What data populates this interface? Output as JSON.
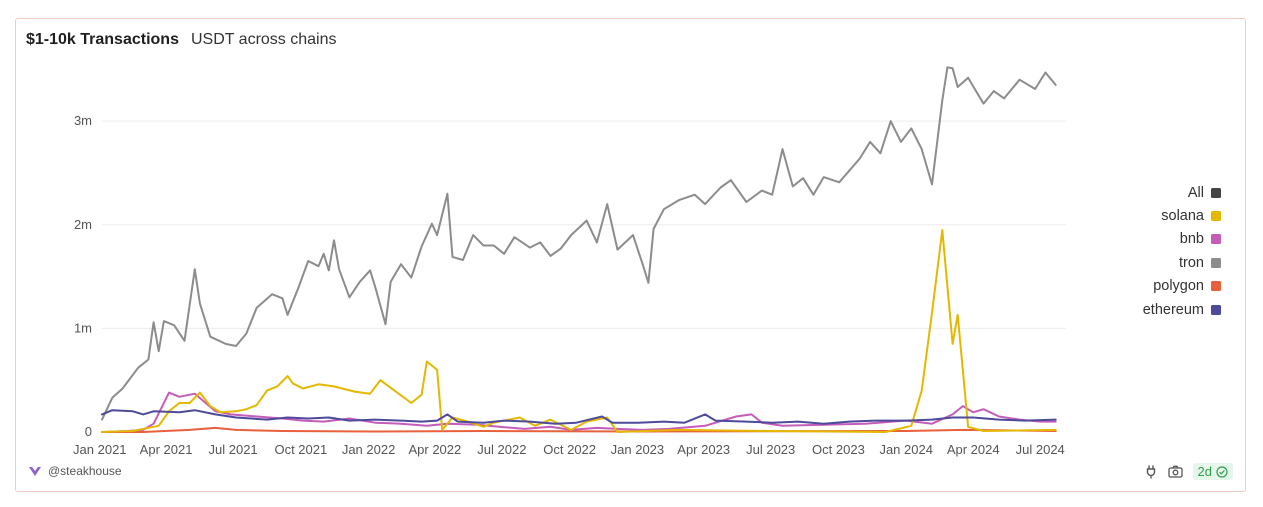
{
  "header": {
    "title": "$1-10k Transactions",
    "subtitle": "USDT across chains"
  },
  "footer": {
    "author": "@steakhouse",
    "freshness": "2d",
    "icons": [
      "steakhouse-logo-icon",
      "plug-icon",
      "camera-icon",
      "check-circle-icon"
    ]
  },
  "chart_data": {
    "type": "line",
    "title": "$1-10k Transactions",
    "subtitle": "USDT across chains",
    "xlabel": "",
    "ylabel": "",
    "x_range": [
      "2021-01-04",
      "2024-08-05"
    ],
    "ylim": [
      0,
      3600000
    ],
    "y_ticks": [
      {
        "value": 0,
        "label": "0"
      },
      {
        "value": 1000000,
        "label": "1m"
      },
      {
        "value": 2000000,
        "label": "2m"
      },
      {
        "value": 3000000,
        "label": "3m"
      }
    ],
    "x_ticks": [
      {
        "date": "2021-01-01",
        "label": "Jan 2021"
      },
      {
        "date": "2021-04-01",
        "label": "Apr 2021"
      },
      {
        "date": "2021-07-01",
        "label": "Jul 2021"
      },
      {
        "date": "2021-10-01",
        "label": "Oct 2021"
      },
      {
        "date": "2022-01-01",
        "label": "Jan 2022"
      },
      {
        "date": "2022-04-01",
        "label": "Apr 2022"
      },
      {
        "date": "2022-07-01",
        "label": "Jul 2022"
      },
      {
        "date": "2022-10-01",
        "label": "Oct 2022"
      },
      {
        "date": "2023-01-01",
        "label": "Jan 2023"
      },
      {
        "date": "2023-04-01",
        "label": "Apr 2023"
      },
      {
        "date": "2023-07-01",
        "label": "Jul 2023"
      },
      {
        "date": "2023-10-01",
        "label": "Oct 2023"
      },
      {
        "date": "2024-01-01",
        "label": "Jan 2024"
      },
      {
        "date": "2024-04-01",
        "label": "Apr 2024"
      },
      {
        "date": "2024-07-01",
        "label": "Jul 2024"
      }
    ],
    "grid": "horizontal",
    "legend_position": "right",
    "series": [
      {
        "name": "tron",
        "color": "#8c8c8c",
        "points": [
          [
            "2021-01-04",
            120000
          ],
          [
            "2021-01-18",
            330000
          ],
          [
            "2021-02-01",
            420000
          ],
          [
            "2021-02-22",
            620000
          ],
          [
            "2021-03-08",
            700000
          ],
          [
            "2021-03-15",
            1060000
          ],
          [
            "2021-03-22",
            780000
          ],
          [
            "2021-03-29",
            1070000
          ],
          [
            "2021-04-12",
            1030000
          ],
          [
            "2021-04-26",
            880000
          ],
          [
            "2021-05-10",
            1570000
          ],
          [
            "2021-05-17",
            1240000
          ],
          [
            "2021-05-31",
            920000
          ],
          [
            "2021-06-21",
            850000
          ],
          [
            "2021-07-05",
            830000
          ],
          [
            "2021-07-19",
            950000
          ],
          [
            "2021-08-02",
            1200000
          ],
          [
            "2021-08-23",
            1330000
          ],
          [
            "2021-09-06",
            1290000
          ],
          [
            "2021-09-13",
            1130000
          ],
          [
            "2021-09-27",
            1380000
          ],
          [
            "2021-10-11",
            1650000
          ],
          [
            "2021-10-25",
            1600000
          ],
          [
            "2021-11-01",
            1720000
          ],
          [
            "2021-11-08",
            1560000
          ],
          [
            "2021-11-15",
            1850000
          ],
          [
            "2021-11-22",
            1570000
          ],
          [
            "2021-12-06",
            1300000
          ],
          [
            "2021-12-20",
            1450000
          ],
          [
            "2022-01-03",
            1560000
          ],
          [
            "2022-01-10",
            1400000
          ],
          [
            "2022-01-24",
            1040000
          ],
          [
            "2022-01-31",
            1450000
          ],
          [
            "2022-02-14",
            1620000
          ],
          [
            "2022-02-28",
            1490000
          ],
          [
            "2022-03-14",
            1790000
          ],
          [
            "2022-03-28",
            2010000
          ],
          [
            "2022-04-04",
            1900000
          ],
          [
            "2022-04-18",
            2300000
          ],
          [
            "2022-04-25",
            1690000
          ],
          [
            "2022-05-09",
            1660000
          ],
          [
            "2022-05-23",
            1900000
          ],
          [
            "2022-06-06",
            1800000
          ],
          [
            "2022-06-20",
            1800000
          ],
          [
            "2022-07-04",
            1720000
          ],
          [
            "2022-07-18",
            1880000
          ],
          [
            "2022-08-08",
            1780000
          ],
          [
            "2022-08-22",
            1830000
          ],
          [
            "2022-09-05",
            1700000
          ],
          [
            "2022-09-19",
            1770000
          ],
          [
            "2022-10-03",
            1900000
          ],
          [
            "2022-10-24",
            2040000
          ],
          [
            "2022-11-07",
            1830000
          ],
          [
            "2022-11-21",
            2200000
          ],
          [
            "2022-12-05",
            1760000
          ],
          [
            "2022-12-26",
            1900000
          ],
          [
            "2023-01-09",
            1600000
          ],
          [
            "2023-01-16",
            1440000
          ],
          [
            "2023-01-23",
            1960000
          ],
          [
            "2023-02-06",
            2150000
          ],
          [
            "2023-02-27",
            2240000
          ],
          [
            "2023-03-20",
            2290000
          ],
          [
            "2023-04-03",
            2200000
          ],
          [
            "2023-04-24",
            2360000
          ],
          [
            "2023-05-08",
            2430000
          ],
          [
            "2023-05-29",
            2220000
          ],
          [
            "2023-06-19",
            2330000
          ],
          [
            "2023-07-03",
            2290000
          ],
          [
            "2023-07-17",
            2730000
          ],
          [
            "2023-07-31",
            2370000
          ],
          [
            "2023-08-14",
            2450000
          ],
          [
            "2023-08-28",
            2290000
          ],
          [
            "2023-09-11",
            2460000
          ],
          [
            "2023-10-02",
            2410000
          ],
          [
            "2023-10-30",
            2640000
          ],
          [
            "2023-11-13",
            2800000
          ],
          [
            "2023-11-27",
            2690000
          ],
          [
            "2023-12-11",
            3000000
          ],
          [
            "2023-12-25",
            2800000
          ],
          [
            "2024-01-08",
            2930000
          ],
          [
            "2024-01-22",
            2730000
          ],
          [
            "2024-02-05",
            2390000
          ],
          [
            "2024-02-19",
            3200000
          ],
          [
            "2024-02-26",
            3520000
          ],
          [
            "2024-03-04",
            3510000
          ],
          [
            "2024-03-11",
            3330000
          ],
          [
            "2024-03-25",
            3420000
          ],
          [
            "2024-04-15",
            3170000
          ],
          [
            "2024-04-29",
            3290000
          ],
          [
            "2024-05-13",
            3220000
          ],
          [
            "2024-06-03",
            3400000
          ],
          [
            "2024-06-24",
            3310000
          ],
          [
            "2024-07-08",
            3470000
          ],
          [
            "2024-07-22",
            3350000
          ]
        ]
      },
      {
        "name": "solana",
        "color": "#e5b800",
        "points": [
          [
            "2021-01-04",
            0
          ],
          [
            "2021-02-15",
            10000
          ],
          [
            "2021-03-22",
            60000
          ],
          [
            "2021-04-05",
            200000
          ],
          [
            "2021-04-19",
            280000
          ],
          [
            "2021-05-03",
            280000
          ],
          [
            "2021-05-17",
            380000
          ],
          [
            "2021-05-31",
            250000
          ],
          [
            "2021-06-14",
            190000
          ],
          [
            "2021-07-05",
            200000
          ],
          [
            "2021-07-19",
            220000
          ],
          [
            "2021-08-02",
            260000
          ],
          [
            "2021-08-16",
            400000
          ],
          [
            "2021-08-30",
            440000
          ],
          [
            "2021-09-13",
            540000
          ],
          [
            "2021-09-20",
            470000
          ],
          [
            "2021-10-04",
            420000
          ],
          [
            "2021-10-25",
            460000
          ],
          [
            "2021-11-15",
            440000
          ],
          [
            "2021-12-13",
            390000
          ],
          [
            "2022-01-03",
            370000
          ],
          [
            "2022-01-17",
            500000
          ],
          [
            "2022-02-07",
            390000
          ],
          [
            "2022-02-28",
            280000
          ],
          [
            "2022-03-14",
            360000
          ],
          [
            "2022-03-21",
            680000
          ],
          [
            "2022-04-04",
            600000
          ],
          [
            "2022-04-11",
            20000
          ],
          [
            "2022-04-25",
            140000
          ],
          [
            "2022-05-16",
            100000
          ],
          [
            "2022-06-06",
            50000
          ],
          [
            "2022-06-20",
            90000
          ],
          [
            "2022-07-25",
            140000
          ],
          [
            "2022-08-15",
            60000
          ],
          [
            "2022-09-05",
            120000
          ],
          [
            "2022-10-03",
            20000
          ],
          [
            "2022-10-24",
            100000
          ],
          [
            "2022-11-21",
            140000
          ],
          [
            "2022-12-05",
            0
          ],
          [
            "2023-02-27",
            20000
          ],
          [
            "2023-06-26",
            10000
          ],
          [
            "2023-12-04",
            0
          ],
          [
            "2024-01-08",
            60000
          ],
          [
            "2024-01-22",
            400000
          ],
          [
            "2024-02-05",
            1150000
          ],
          [
            "2024-02-19",
            1950000
          ],
          [
            "2024-03-04",
            850000
          ],
          [
            "2024-03-11",
            1130000
          ],
          [
            "2024-03-25",
            50000
          ],
          [
            "2024-04-15",
            10000
          ],
          [
            "2024-07-22",
            20000
          ]
        ]
      },
      {
        "name": "bnb",
        "color": "#c65cb9",
        "points": [
          [
            "2021-01-04",
            0
          ],
          [
            "2021-02-08",
            10000
          ],
          [
            "2021-03-01",
            20000
          ],
          [
            "2021-03-15",
            80000
          ],
          [
            "2021-04-05",
            380000
          ],
          [
            "2021-04-19",
            340000
          ],
          [
            "2021-05-10",
            370000
          ],
          [
            "2021-06-07",
            200000
          ],
          [
            "2021-06-28",
            170000
          ],
          [
            "2021-08-02",
            150000
          ],
          [
            "2021-09-06",
            130000
          ],
          [
            "2021-10-04",
            110000
          ],
          [
            "2021-11-01",
            100000
          ],
          [
            "2021-12-06",
            130000
          ],
          [
            "2022-01-10",
            90000
          ],
          [
            "2022-02-14",
            80000
          ],
          [
            "2022-03-21",
            60000
          ],
          [
            "2022-04-18",
            80000
          ],
          [
            "2022-05-30",
            70000
          ],
          [
            "2022-06-27",
            50000
          ],
          [
            "2022-08-01",
            30000
          ],
          [
            "2022-09-05",
            50000
          ],
          [
            "2022-10-03",
            20000
          ],
          [
            "2022-11-07",
            40000
          ],
          [
            "2022-12-05",
            30000
          ],
          [
            "2023-01-09",
            20000
          ],
          [
            "2023-02-13",
            30000
          ],
          [
            "2023-04-03",
            60000
          ],
          [
            "2023-05-15",
            150000
          ],
          [
            "2023-06-05",
            170000
          ],
          [
            "2023-06-19",
            90000
          ],
          [
            "2023-07-17",
            60000
          ],
          [
            "2023-09-11",
            70000
          ],
          [
            "2023-11-06",
            80000
          ],
          [
            "2024-01-01",
            110000
          ],
          [
            "2024-02-05",
            80000
          ],
          [
            "2024-03-04",
            170000
          ],
          [
            "2024-03-18",
            250000
          ],
          [
            "2024-04-01",
            190000
          ],
          [
            "2024-04-15",
            220000
          ],
          [
            "2024-05-06",
            150000
          ],
          [
            "2024-06-03",
            120000
          ],
          [
            "2024-07-01",
            100000
          ],
          [
            "2024-07-22",
            100000
          ]
        ]
      },
      {
        "name": "polygon",
        "color": "#e8603c",
        "points": [
          [
            "2021-01-04",
            0
          ],
          [
            "2021-03-01",
            0
          ],
          [
            "2021-05-03",
            20000
          ],
          [
            "2021-06-07",
            40000
          ],
          [
            "2021-07-05",
            20000
          ],
          [
            "2021-09-06",
            10000
          ],
          [
            "2022-01-03",
            5000
          ],
          [
            "2022-06-06",
            10000
          ],
          [
            "2023-01-02",
            5000
          ],
          [
            "2024-01-01",
            10000
          ],
          [
            "2024-03-18",
            20000
          ],
          [
            "2024-07-22",
            10000
          ]
        ]
      },
      {
        "name": "ethereum",
        "color": "#4d4a9a",
        "points": [
          [
            "2021-01-04",
            170000
          ],
          [
            "2021-01-18",
            210000
          ],
          [
            "2021-02-15",
            200000
          ],
          [
            "2021-03-01",
            170000
          ],
          [
            "2021-03-15",
            200000
          ],
          [
            "2021-04-19",
            190000
          ],
          [
            "2021-05-10",
            210000
          ],
          [
            "2021-06-07",
            170000
          ],
          [
            "2021-07-05",
            140000
          ],
          [
            "2021-08-16",
            120000
          ],
          [
            "2021-09-13",
            140000
          ],
          [
            "2021-10-11",
            130000
          ],
          [
            "2021-11-08",
            140000
          ],
          [
            "2021-12-06",
            110000
          ],
          [
            "2022-01-10",
            120000
          ],
          [
            "2022-02-14",
            110000
          ],
          [
            "2022-03-14",
            100000
          ],
          [
            "2022-04-04",
            110000
          ],
          [
            "2022-04-18",
            170000
          ],
          [
            "2022-05-02",
            100000
          ],
          [
            "2022-06-06",
            90000
          ],
          [
            "2022-07-04",
            110000
          ],
          [
            "2022-08-08",
            100000
          ],
          [
            "2022-09-12",
            80000
          ],
          [
            "2022-10-10",
            90000
          ],
          [
            "2022-11-14",
            150000
          ],
          [
            "2022-11-28",
            90000
          ],
          [
            "2023-01-02",
            90000
          ],
          [
            "2023-02-06",
            100000
          ],
          [
            "2023-03-06",
            90000
          ],
          [
            "2023-04-03",
            170000
          ],
          [
            "2023-04-17",
            110000
          ],
          [
            "2023-05-29",
            100000
          ],
          [
            "2023-07-03",
            90000
          ],
          [
            "2023-08-07",
            100000
          ],
          [
            "2023-09-11",
            80000
          ],
          [
            "2023-10-16",
            100000
          ],
          [
            "2023-11-20",
            110000
          ],
          [
            "2024-01-01",
            110000
          ],
          [
            "2024-02-05",
            120000
          ],
          [
            "2024-03-04",
            140000
          ],
          [
            "2024-04-01",
            140000
          ],
          [
            "2024-05-06",
            120000
          ],
          [
            "2024-06-10",
            110000
          ],
          [
            "2024-07-22",
            120000
          ]
        ]
      },
      {
        "name": "All",
        "color": "#444444",
        "points": []
      }
    ]
  }
}
